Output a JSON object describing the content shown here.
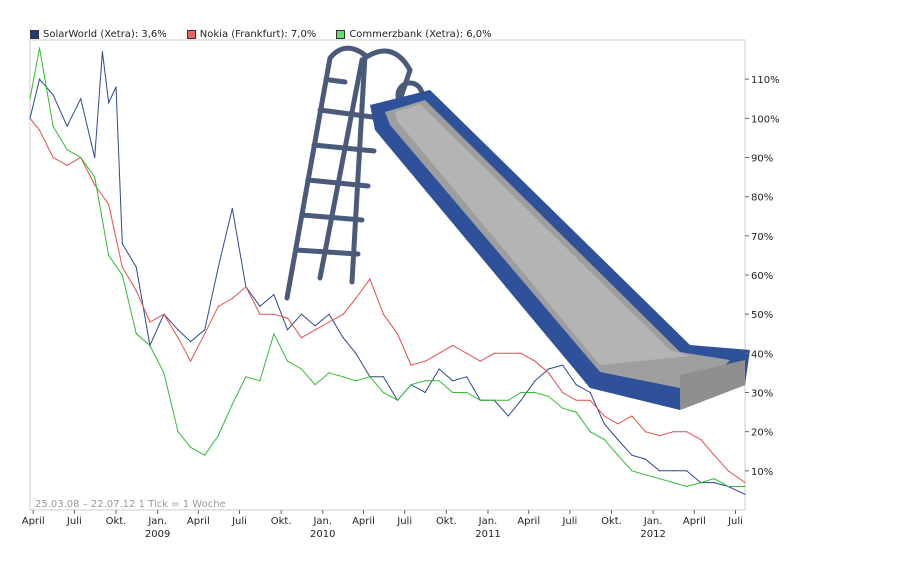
{
  "chart_data": {
    "type": "line",
    "title": "",
    "note": "25.03.08 – 22.07.12   1 Tick = 1 Woche",
    "ylim": [
      0,
      120
    ],
    "y_ticks": [
      "10%",
      "20%",
      "30%",
      "40%",
      "50%",
      "60%",
      "70%",
      "80%",
      "90%",
      "100%",
      "110%"
    ],
    "y_tick_values": [
      10,
      20,
      30,
      40,
      50,
      60,
      70,
      80,
      90,
      100,
      110
    ],
    "x_ticks": [
      "April",
      "Juli",
      "Okt.",
      "Jan.",
      "April",
      "Juli",
      "Okt.",
      "Jan.",
      "April",
      "Juli",
      "Okt.",
      "Jan.",
      "April",
      "Juli",
      "Okt.",
      "Jan.",
      "April",
      "Juli"
    ],
    "x_tick_dates": [
      "2008-04-01",
      "2008-07-01",
      "2008-10-01",
      "2009-01-01",
      "2009-04-01",
      "2009-07-01",
      "2009-10-01",
      "2010-01-01",
      "2010-04-01",
      "2010-07-01",
      "2010-10-01",
      "2011-01-01",
      "2011-04-01",
      "2011-07-01",
      "2011-10-01",
      "2012-01-01",
      "2012-04-01",
      "2012-07-01"
    ],
    "year_labels": [
      {
        "label": "2009",
        "date": "2009-01-01"
      },
      {
        "label": "2010",
        "date": "2010-01-01"
      },
      {
        "label": "2011",
        "date": "2011-01-01"
      },
      {
        "label": "2012",
        "date": "2012-01-01"
      }
    ],
    "x_range": [
      "2008-03-25",
      "2012-07-22"
    ],
    "grid": false,
    "legend_position": "top-left",
    "series": [
      {
        "name": "SolarWorld (Xetra): 3,6%",
        "color": "#2b4a8c",
        "swatch": "#1e3a78",
        "x": [
          "2008-03-25",
          "2008-04-15",
          "2008-05-15",
          "2008-06-15",
          "2008-07-15",
          "2008-08-15",
          "2008-09-01",
          "2008-09-15",
          "2008-10-01",
          "2008-10-15",
          "2008-11-15",
          "2008-12-15",
          "2009-01-15",
          "2009-02-15",
          "2009-03-15",
          "2009-04-15",
          "2009-05-15",
          "2009-06-15",
          "2009-07-15",
          "2009-08-15",
          "2009-09-15",
          "2009-10-15",
          "2009-11-15",
          "2009-12-15",
          "2010-01-15",
          "2010-02-15",
          "2010-03-15",
          "2010-04-15",
          "2010-05-15",
          "2010-06-15",
          "2010-07-15",
          "2010-08-15",
          "2010-09-15",
          "2010-10-15",
          "2010-11-15",
          "2010-12-15",
          "2011-01-15",
          "2011-02-15",
          "2011-03-15",
          "2011-04-15",
          "2011-05-15",
          "2011-06-15",
          "2011-07-15",
          "2011-08-15",
          "2011-09-15",
          "2011-10-15",
          "2011-11-15",
          "2011-12-15",
          "2012-01-15",
          "2012-02-15",
          "2012-03-15",
          "2012-04-15",
          "2012-05-15",
          "2012-06-15",
          "2012-07-22"
        ],
        "values": [
          100,
          110,
          106,
          98,
          105,
          90,
          117,
          104,
          108,
          68,
          62,
          42,
          50,
          46,
          43,
          46,
          62,
          77,
          57,
          52,
          55,
          46,
          50,
          47,
          50,
          44,
          40,
          34,
          34,
          28,
          32,
          30,
          36,
          33,
          34,
          28,
          28,
          24,
          28,
          33,
          36,
          37,
          32,
          30,
          22,
          18,
          14,
          13,
          10,
          10,
          10,
          7,
          7,
          6,
          4
        ]
      },
      {
        "name": "Nokia (Frankfurt): 7,0%",
        "color": "#e05050",
        "swatch": "#e86464",
        "x": [
          "2008-03-25",
          "2008-04-15",
          "2008-05-15",
          "2008-06-15",
          "2008-07-15",
          "2008-08-15",
          "2008-09-15",
          "2008-10-15",
          "2008-11-15",
          "2008-12-15",
          "2009-01-15",
          "2009-02-15",
          "2009-03-15",
          "2009-04-15",
          "2009-05-15",
          "2009-06-15",
          "2009-07-15",
          "2009-08-15",
          "2009-09-15",
          "2009-10-15",
          "2009-11-15",
          "2009-12-15",
          "2010-01-15",
          "2010-02-15",
          "2010-03-15",
          "2010-04-15",
          "2010-05-15",
          "2010-06-15",
          "2010-07-15",
          "2010-08-15",
          "2010-09-15",
          "2010-10-15",
          "2010-11-15",
          "2010-12-15",
          "2011-01-15",
          "2011-02-15",
          "2011-03-15",
          "2011-04-15",
          "2011-05-15",
          "2011-06-15",
          "2011-07-15",
          "2011-08-15",
          "2011-09-15",
          "2011-10-15",
          "2011-11-15",
          "2011-12-15",
          "2012-01-15",
          "2012-02-15",
          "2012-03-15",
          "2012-04-15",
          "2012-05-15",
          "2012-06-15",
          "2012-07-22"
        ],
        "values": [
          100,
          97,
          90,
          88,
          90,
          83,
          78,
          62,
          56,
          48,
          50,
          44,
          38,
          45,
          52,
          54,
          57,
          50,
          50,
          49,
          44,
          46,
          48,
          50,
          54,
          59,
          50,
          45,
          37,
          38,
          40,
          42,
          40,
          38,
          40,
          40,
          40,
          38,
          35,
          30,
          28,
          28,
          24,
          22,
          24,
          20,
          19,
          20,
          20,
          18,
          14,
          10,
          7
        ]
      },
      {
        "name": "Commerzbank (Xetra): 6,0%",
        "color": "#33bb33",
        "swatch": "#66dd66",
        "x": [
          "2008-03-25",
          "2008-04-15",
          "2008-05-15",
          "2008-06-15",
          "2008-07-15",
          "2008-08-15",
          "2008-09-15",
          "2008-10-15",
          "2008-11-15",
          "2008-12-15",
          "2009-01-15",
          "2009-02-15",
          "2009-03-15",
          "2009-04-15",
          "2009-05-15",
          "2009-06-15",
          "2009-07-15",
          "2009-08-15",
          "2009-09-15",
          "2009-10-15",
          "2009-11-15",
          "2009-12-15",
          "2010-01-15",
          "2010-02-15",
          "2010-03-15",
          "2010-04-15",
          "2010-05-15",
          "2010-06-15",
          "2010-07-15",
          "2010-08-15",
          "2010-09-15",
          "2010-10-15",
          "2010-11-15",
          "2010-12-15",
          "2011-01-15",
          "2011-02-15",
          "2011-03-15",
          "2011-04-15",
          "2011-05-15",
          "2011-06-15",
          "2011-07-15",
          "2011-08-15",
          "2011-09-15",
          "2011-10-15",
          "2011-11-15",
          "2011-12-15",
          "2012-01-15",
          "2012-02-15",
          "2012-03-15",
          "2012-04-15",
          "2012-05-15",
          "2012-06-15",
          "2012-07-22"
        ],
        "values": [
          105,
          118,
          98,
          92,
          90,
          85,
          65,
          60,
          45,
          42,
          35,
          20,
          16,
          14,
          19,
          27,
          34,
          33,
          45,
          38,
          36,
          32,
          35,
          34,
          33,
          34,
          30,
          28,
          32,
          33,
          33,
          30,
          30,
          28,
          28,
          28,
          30,
          30,
          29,
          26,
          25,
          20,
          18,
          14,
          10,
          9,
          8,
          7,
          6,
          7,
          8,
          6,
          6
        ]
      }
    ]
  }
}
